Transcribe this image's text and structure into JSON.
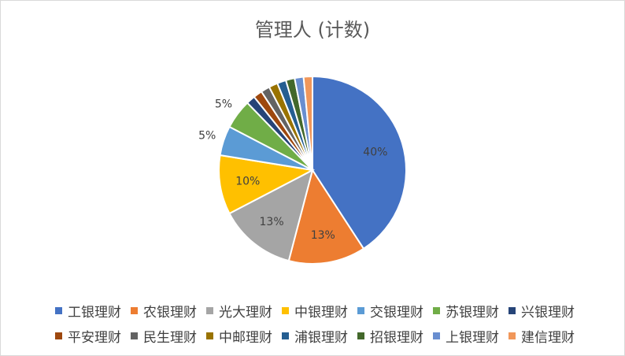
{
  "chart_data": {
    "type": "pie",
    "title": "管理人 (计数)",
    "categories": [
      "工银理财",
      "农银理财",
      "光大理财",
      "中银理财",
      "交银理财",
      "苏银理财",
      "兴银理财",
      "平安理财",
      "民生理财",
      "中邮理财",
      "浦银理财",
      "招银理财",
      "上银理财",
      "建信理财"
    ],
    "values": [
      40,
      13,
      13,
      10,
      5,
      5,
      1.5,
      1.5,
      1.5,
      1.5,
      1.5,
      1.5,
      1.5,
      1.5
    ],
    "labels": [
      "40%",
      "13%",
      "13%",
      "10%",
      "5%",
      "5%",
      "",
      "",
      "",
      "",
      "",
      "",
      "",
      ""
    ],
    "colors": [
      "#4472C4",
      "#ED7D31",
      "#A5A5A5",
      "#FFC000",
      "#5B9BD5",
      "#70AD47",
      "#264478",
      "#9E480E",
      "#636363",
      "#997300",
      "#255E91",
      "#43682B",
      "#698ED0",
      "#F1975A"
    ],
    "legend_position": "bottom"
  }
}
